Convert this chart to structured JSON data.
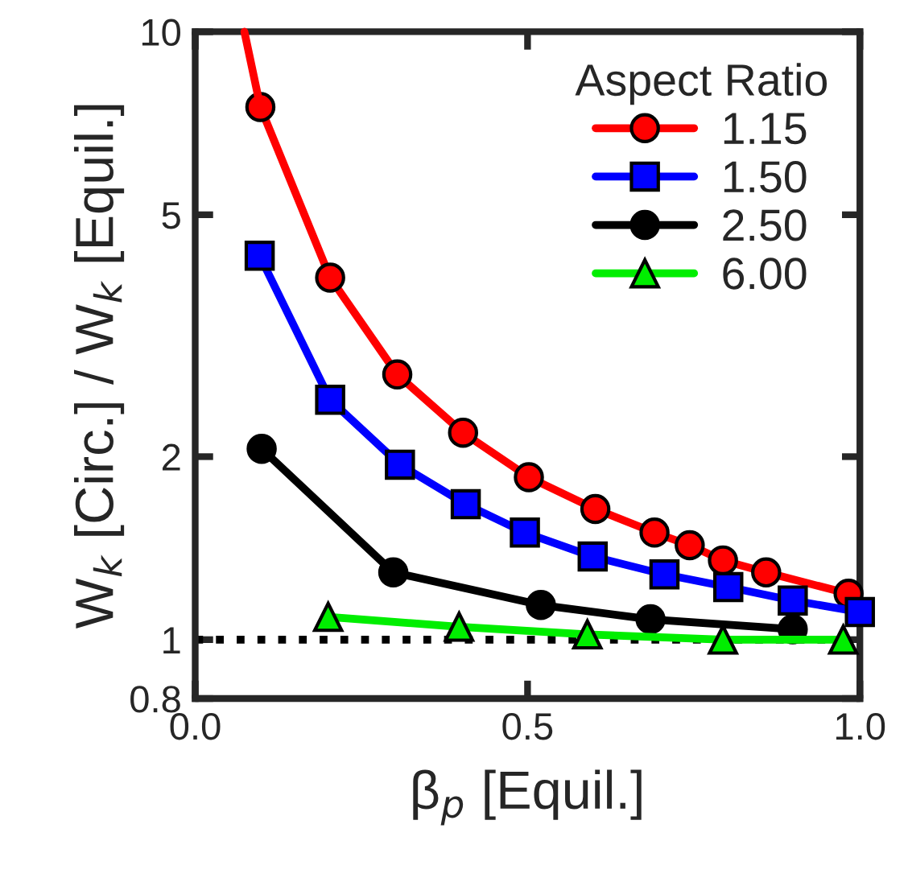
{
  "chart_data": {
    "type": "line",
    "xlabel": "β$_{p}$ [Equil.]",
    "ylabel": "W$_{k}$ [Circ.] / W$_{k}$ [Equil.]",
    "legend_title": "Aspect Ratio",
    "legend": "top right",
    "log": "y",
    "grid": false,
    "line_style": "solid",
    "xlim": [
      0,
      1
    ],
    "xticks": [
      {
        "value": 0,
        "label": "0.0"
      },
      {
        "value": 0.5,
        "label": "0.5"
      },
      {
        "value": 1,
        "label": "1.0"
      }
    ],
    "ylim": [
      0.8,
      10
    ],
    "yticks": [
      {
        "value": 0.8,
        "label": "0.8"
      },
      1,
      2,
      5,
      10
    ],
    "ref_lines": [
      {
        "axis": "y",
        "value": 1,
        "label": null,
        "color": "#000000",
        "line_style": "dotted"
      }
    ],
    "series": [
      {
        "name": "1.15",
        "color": "#ff0000",
        "marker": "circle",
        "x": [
          0.098,
          0.203,
          0.304,
          0.403,
          0.502,
          0.602,
          0.691,
          0.744,
          0.794,
          0.859,
          0.983
        ],
        "values": [
          7.52,
          3.94,
          2.73,
          2.19,
          1.85,
          1.64,
          1.5,
          1.43,
          1.35,
          1.29,
          1.19
        ]
      },
      {
        "name": "1.50",
        "color": "#0000ff",
        "marker": "square",
        "x": [
          0.097,
          0.203,
          0.308,
          0.407,
          0.496,
          0.598,
          0.706,
          0.802,
          0.899,
          1.0
        ],
        "values": [
          4.28,
          2.48,
          1.94,
          1.67,
          1.5,
          1.37,
          1.28,
          1.22,
          1.16,
          1.11
        ]
      },
      {
        "name": "2.50",
        "color": "#000000",
        "marker": "circle",
        "x": [
          0.1,
          0.298,
          0.52,
          0.685,
          0.899
        ],
        "values": [
          2.06,
          1.29,
          1.14,
          1.08,
          1.04
        ]
      },
      {
        "name": "6.00",
        "color": "#00ee00",
        "marker": "triangle",
        "x": [
          0.2,
          0.397,
          0.59,
          0.794,
          0.975
        ],
        "values": [
          1.09,
          1.05,
          1.02,
          1.0,
          1.0
        ]
      },
      {
        "color": "#ff0000",
        "marker": "none",
        "x": [
          0.074,
          0.098
        ],
        "values": [
          10,
          7.52
        ]
      }
    ]
  }
}
